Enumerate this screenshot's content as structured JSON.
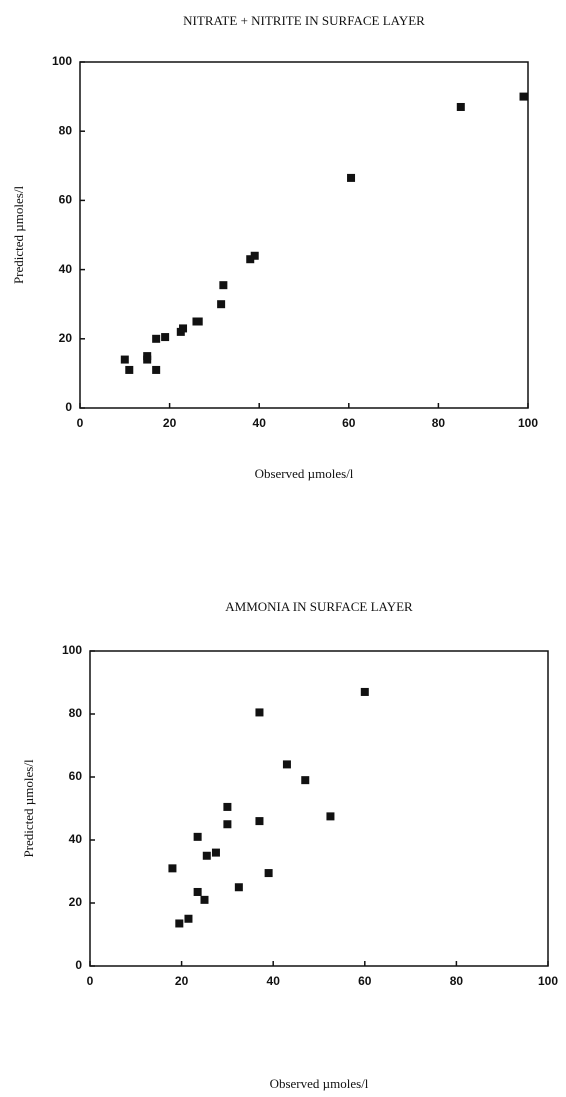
{
  "chart_data": [
    {
      "type": "scatter",
      "title": "NITRATE + NITRITE IN SURFACE LAYER",
      "x_label": "Observed µmoles/l",
      "y_label": "Predicted µmoles/l",
      "x": [
        10,
        11,
        15,
        15,
        17,
        17,
        19,
        22.5,
        23,
        26,
        26.5,
        31.5,
        32,
        38,
        39,
        60.5,
        85,
        99
      ],
      "values": [
        14,
        11,
        15,
        14,
        11,
        20,
        20.5,
        22,
        23,
        25,
        25,
        30,
        35.5,
        43,
        44,
        66.5,
        87,
        90
      ],
      "color": "#111111",
      "xlim": [
        0,
        100
      ],
      "xticks": [
        0,
        20,
        40,
        60,
        80,
        100
      ],
      "ylim": [
        0,
        100
      ],
      "yticks": [
        0,
        20,
        40,
        60,
        80,
        100
      ]
    },
    {
      "type": "scatter",
      "title": "AMMONIA IN SURFACE LAYER",
      "x_label": "Observed µmoles/l",
      "y_label": "Predicted µmoles/l",
      "x": [
        18,
        19.5,
        21.5,
        23.5,
        23.5,
        25,
        25.5,
        27.5,
        30,
        30,
        32.5,
        37,
        37,
        39,
        43,
        47,
        52.5,
        60
      ],
      "values": [
        31,
        13.5,
        15,
        41,
        23.5,
        21,
        35,
        36,
        45,
        50.5,
        25,
        80.5,
        46,
        29.5,
        64,
        59,
        47.5,
        87
      ],
      "color": "#111111",
      "xlim": [
        0,
        100
      ],
      "xticks": [
        0,
        20,
        40,
        60,
        80,
        100
      ],
      "ylim": [
        0,
        100
      ],
      "yticks": [
        0,
        20,
        40,
        60,
        80,
        100
      ]
    }
  ]
}
